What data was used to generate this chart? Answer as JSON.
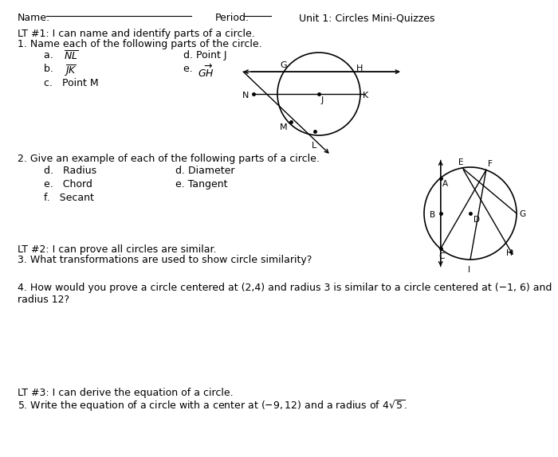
{
  "bg_color": "#ffffff",
  "title_line": "Unit 1: Circles Mini-Quizzes",
  "lt1_text": "LT #1: I can name and identify parts of a circle.",
  "q1_text": "1. Name each of the following parts of the circle.",
  "q1a": "a.  NL",
  "q1d": "d. Point J",
  "q1b": "b.  JK",
  "q1e": "e. GH",
  "q1c": "c.   Point M",
  "q2_text": "2. Give an example of each of the following parts of a circle.",
  "q2d1": "d.   Radius",
  "q2d2": "d. Diameter",
  "q2e1": "e.   Chord",
  "q2e2": "e. Tangent",
  "q2f": "f.   Secant",
  "lt2_text": "LT #2: I can prove all circles are similar.",
  "q3_text": "3. What transformations are used to show circle similarity?",
  "q4_text": "4. How would you prove a circle centered at (2,4) and radius 3 is similar to a circle centered at (−1, 6) and\nradius 12?",
  "lt3_text": "LT #3: I can derive the equation of a circle.",
  "q5_pre": "5. Write the equation of a circle with a center at (−9, 12) and a radius of 4"
}
